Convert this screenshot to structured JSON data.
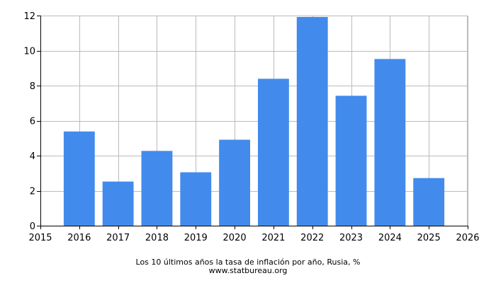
{
  "chart_data": {
    "type": "bar",
    "categories": [
      "2016",
      "2017",
      "2018",
      "2019",
      "2020",
      "2021",
      "2022",
      "2023",
      "2024",
      "2025"
    ],
    "values": [
      5.38,
      2.52,
      4.27,
      3.05,
      4.91,
      8.39,
      11.92,
      7.42,
      9.52,
      2.72
    ],
    "x_ticks": [
      "2015",
      "2016",
      "2017",
      "2018",
      "2019",
      "2020",
      "2021",
      "2022",
      "2023",
      "2024",
      "2025",
      "2026"
    ],
    "y_ticks": [
      "0",
      "2",
      "4",
      "6",
      "8",
      "10",
      "12"
    ],
    "xlim": [
      2015,
      2026
    ],
    "ylim": [
      0,
      12
    ],
    "grid": true,
    "bar_color": "#428bed",
    "grid_color": "#bbbbbb",
    "title": "Los 10 últimos años la tasa de inflación por año, Rusia, %",
    "source": "www.statbureau.org"
  }
}
